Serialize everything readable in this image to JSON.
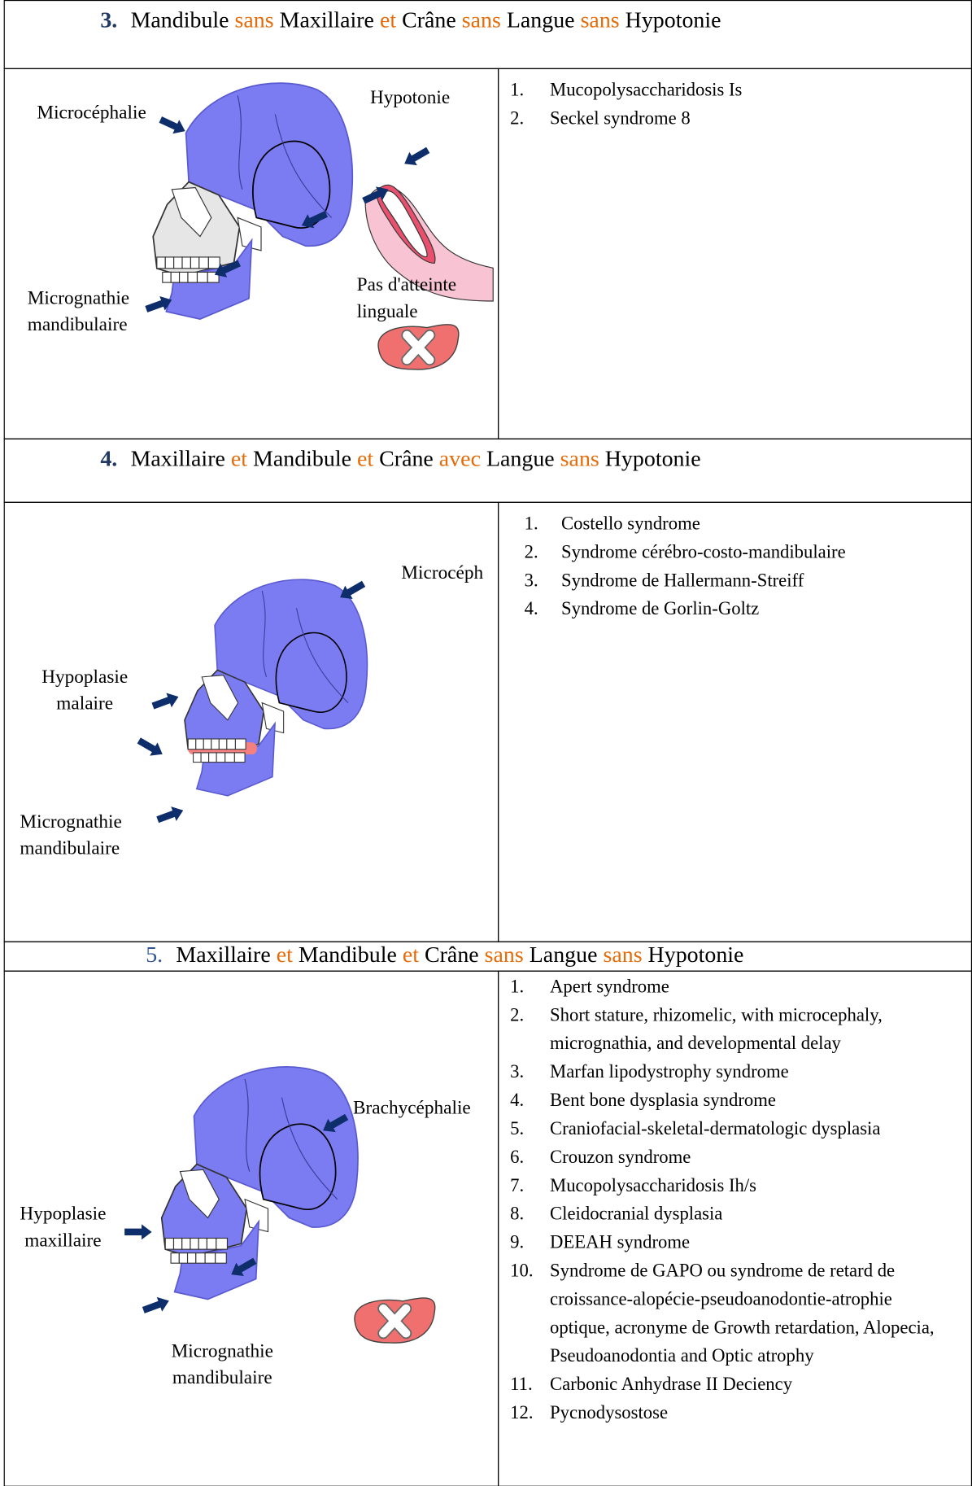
{
  "sections": [
    {
      "number": "3.",
      "number_color": "#1f3864",
      "number_bold": true,
      "heading": [
        {
          "text": "Mandibule",
          "color": "#000000"
        },
        {
          "text": "sans",
          "color": "#e46c0a"
        },
        {
          "text": "Maxillaire",
          "color": "#000000"
        },
        {
          "text": "et",
          "color": "#e46c0a"
        },
        {
          "text": "Crâne",
          "color": "#000000"
        },
        {
          "text": "sans",
          "color": "#e46c0a"
        },
        {
          "text": "Langue",
          "color": "#000000"
        },
        {
          "text": "sans",
          "color": "#e46c0a"
        },
        {
          "text": "Hypotonie",
          "color": "#000000"
        }
      ],
      "labels": [
        {
          "lines": [
            "Microcéphalie"
          ]
        },
        {
          "lines": [
            "Hypotonie"
          ]
        },
        {
          "lines": [
            "Micrognathie",
            "mandibulaire"
          ]
        },
        {
          "lines": [
            "Pas d'atteinte",
            "linguale"
          ]
        }
      ],
      "items": [
        {
          "number": "1.",
          "text": "Mucopolysaccharidosis Is"
        },
        {
          "number": "2.",
          "text": "Seckel syndrome 8"
        }
      ]
    },
    {
      "number": "4.",
      "number_color": "#1f3864",
      "number_bold": true,
      "heading": [
        {
          "text": "Maxillaire",
          "color": "#000000"
        },
        {
          "text": "et",
          "color": "#e46c0a"
        },
        {
          "text": "Mandibule",
          "color": "#000000"
        },
        {
          "text": "et",
          "color": "#e46c0a"
        },
        {
          "text": "Crâne",
          "color": "#000000"
        },
        {
          "text": "avec",
          "color": "#e46c0a"
        },
        {
          "text": "Langue",
          "color": "#000000"
        },
        {
          "text": "sans",
          "color": "#e46c0a"
        },
        {
          "text": "Hypotonie",
          "color": "#000000"
        }
      ],
      "labels": [
        {
          "lines": [
            "Microcéph"
          ]
        },
        {
          "lines": [
            "Hypoplasie",
            "malaire"
          ]
        },
        {
          "lines": [
            "Micrognathie",
            "mandibulaire"
          ]
        }
      ],
      "items": [
        {
          "number": "1.",
          "text": "Costello syndrome"
        },
        {
          "number": "2.",
          "text": "Syndrome cérébro-costo-mandibulaire"
        },
        {
          "number": "3.",
          "text": "Syndrome de Hallermann-Streiff"
        },
        {
          "number": "4.",
          "text": "Syndrome de Gorlin-Goltz"
        }
      ]
    },
    {
      "number": "5.",
      "number_color": "#2f5496",
      "number_bold": false,
      "heading": [
        {
          "text": "Maxillaire",
          "color": "#000000"
        },
        {
          "text": "et",
          "color": "#e46c0a"
        },
        {
          "text": "Mandibule",
          "color": "#000000"
        },
        {
          "text": "et",
          "color": "#e46c0a"
        },
        {
          "text": "Crâne",
          "color": "#000000"
        },
        {
          "text": "sans",
          "color": "#e46c0a"
        },
        {
          "text": "Langue",
          "color": "#000000"
        },
        {
          "text": "sans",
          "color": "#e46c0a"
        },
        {
          "text": "Hypotonie",
          "color": "#000000"
        }
      ],
      "labels": [
        {
          "lines": [
            "Brachycéphalie"
          ]
        },
        {
          "lines": [
            "Hypoplasie",
            "maxillaire"
          ]
        },
        {
          "lines": [
            "Micrognathie",
            "mandibulaire"
          ]
        }
      ],
      "items": [
        {
          "number": "1.",
          "text": "Apert syndrome"
        },
        {
          "number": "2.",
          "text": "Short stature, rhizomelic, with microcephaly, micrognathia, and developmental delay"
        },
        {
          "number": "3.",
          "text": "Marfan lipodystrophy syndrome"
        },
        {
          "number": "4.",
          "text": "Bent bone dysplasia syndrome"
        },
        {
          "number": "5.",
          "text": "Craniofacial-skeletal-dermatologic dysplasia"
        },
        {
          "number": "6.",
          "text": "Crouzon syndrome"
        },
        {
          "number": "7.",
          "text": "Mucopolysaccharidosis Ih/s"
        },
        {
          "number": "8.",
          "text": "Cleidocranial dysplasia"
        },
        {
          "number": "9.",
          "text": "DEEAH syndrome"
        },
        {
          "number": "10.",
          "text": "Syndrome de GAPO ou syndrome de retard de croissance-alopécie-pseudoanodontie-atrophie optique, acronyme de Growth retardation, Alopecia, Pseudoanodontia and Optic atrophy"
        },
        {
          "number": "11.",
          "text": "Carbonic Anhydrase II Deciency"
        },
        {
          "number": "12.",
          "text": "Pycnodysostose"
        }
      ]
    }
  ]
}
